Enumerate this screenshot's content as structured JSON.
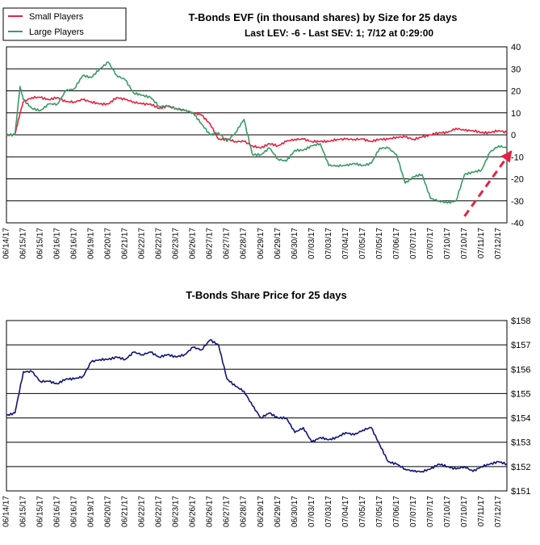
{
  "chart_data": [
    {
      "type": "line",
      "title": "T-Bonds EVF (in thousand shares) by Size for 25 days",
      "subtitle": "Last LEV: -6 - Last SEV: 1; 7/12 at 0:29:00",
      "legend_position": "top-left",
      "grid": true,
      "y_axis_side": "right",
      "ylim": [
        -40,
        40
      ],
      "y_ticks": [
        40,
        30,
        20,
        10,
        0,
        -10,
        -20,
        -30,
        -40
      ],
      "categories": [
        "06/14/17",
        "06/15/17",
        "06/15/17",
        "06/16/17",
        "06/16/17",
        "06/19/17",
        "06/20/17",
        "06/21/17",
        "06/22/17",
        "06/22/17",
        "06/23/17",
        "06/26/17",
        "06/27/17",
        "06/27/17",
        "06/28/17",
        "06/29/17",
        "06/29/17",
        "06/30/17",
        "07/03/17",
        "07/03/17",
        "07/04/17",
        "07/05/17",
        "07/05/17",
        "07/06/17",
        "07/07/17",
        "07/07/17",
        "07/10/17",
        "07/10/17",
        "07/11/17",
        "07/12/17"
      ],
      "colors": {
        "Small Players": "#e8213f",
        "Large Players": "#3a9a67",
        "arrow": "#e8213f"
      },
      "series": [
        {
          "name": "Small Players",
          "x": [
            0,
            0.5,
            0.8,
            1,
            1.5,
            2,
            2.5,
            3,
            3.5,
            4,
            4.5,
            5,
            5.5,
            6,
            6.5,
            7,
            7.5,
            8,
            8.5,
            9,
            9.5,
            10,
            10.5,
            11,
            11.5,
            12,
            12.5,
            13,
            13.5,
            14,
            14.5,
            15,
            15.5,
            16,
            16.5,
            17,
            17.5,
            18,
            18.5,
            19,
            19.5,
            20,
            20.5,
            21,
            21.5,
            22,
            22.5,
            23,
            23.5,
            24,
            24.5,
            25,
            25.5,
            26,
            26.5,
            27,
            27.5,
            28,
            28.5,
            29,
            29.5
          ],
          "values": [
            0,
            0,
            10,
            15,
            17,
            17,
            16,
            17,
            15,
            15,
            16,
            15,
            14,
            14,
            17,
            16,
            15,
            14,
            14,
            12,
            13,
            12,
            11,
            10,
            9,
            5,
            -2,
            -2,
            -3,
            -3,
            -5,
            -6,
            -4,
            -5,
            -3,
            -2,
            -2,
            -3,
            -3,
            -3,
            -2,
            -2,
            -2,
            -2,
            -3,
            -2,
            -2,
            -1,
            -1,
            -2,
            -1,
            0,
            1,
            1,
            3,
            2,
            2,
            1,
            1,
            2,
            1
          ]
        },
        {
          "name": "Large Players",
          "x": [
            0,
            0.5,
            0.8,
            1,
            1.5,
            2,
            2.5,
            3,
            3.5,
            4,
            4.5,
            5,
            5.5,
            6,
            6.5,
            7,
            7.5,
            8,
            8.5,
            9,
            9.5,
            10,
            10.5,
            11,
            11.5,
            12,
            12.5,
            13,
            13.5,
            14,
            14.5,
            15,
            15.5,
            16,
            16.5,
            17,
            17.5,
            18,
            18.5,
            19,
            19.5,
            20,
            20.5,
            21,
            21.5,
            22,
            22.5,
            23,
            23.5,
            24,
            24.5,
            25,
            25.5,
            26,
            26.5,
            27,
            27.5,
            28,
            28.5,
            29,
            29.5
          ],
          "values": [
            0,
            0,
            22,
            16,
            12,
            11,
            14,
            14,
            20,
            21,
            27,
            26,
            30,
            33,
            27,
            25,
            19,
            18,
            17,
            13,
            13,
            12,
            11,
            10,
            5,
            0,
            1,
            -3,
            1,
            7,
            -9,
            -9,
            -6,
            -11,
            -12,
            -7,
            -7,
            -5,
            -4,
            -14,
            -14,
            -14,
            -13,
            -14,
            -13,
            -6,
            -6,
            -9,
            -22,
            -19,
            -18,
            -29,
            -30,
            -31,
            -30,
            -18,
            -17,
            -16,
            -8,
            -5,
            -6
          ]
        }
      ],
      "annotations": [
        {
          "type": "dashed-arrow",
          "from": [
            27,
            -37
          ],
          "to": [
            29.8,
            -7
          ]
        }
      ]
    },
    {
      "type": "line",
      "title": "T-Bonds Share Price for 25 days",
      "grid": true,
      "y_axis_side": "right",
      "ylim": [
        151,
        158
      ],
      "y_ticks": [
        "$158",
        "$157",
        "$156",
        "$155",
        "$154",
        "$153",
        "$152",
        "$151"
      ],
      "categories": [
        "06/14/17",
        "06/15/17",
        "06/15/17",
        "06/16/17",
        "06/16/17",
        "06/19/17",
        "06/20/17",
        "06/21/17",
        "06/22/17",
        "06/22/17",
        "06/23/17",
        "06/26/17",
        "06/26/17",
        "06/27/17",
        "06/28/17",
        "06/29/17",
        "06/29/17",
        "06/30/17",
        "07/03/17",
        "07/03/17",
        "07/04/17",
        "07/05/17",
        "07/05/17",
        "07/06/17",
        "07/07/17",
        "07/07/17",
        "07/10/17",
        "07/10/17",
        "07/11/17",
        "07/12/17"
      ],
      "colors": {
        "price": "#12137a"
      },
      "series": [
        {
          "name": "T-Bonds Share Price",
          "x": [
            0,
            0.5,
            1,
            1.5,
            2,
            2.5,
            3,
            3.5,
            4,
            4.5,
            5,
            5.5,
            6,
            6.5,
            7,
            7.5,
            8,
            8.5,
            9,
            9.5,
            10,
            10.5,
            11,
            11.5,
            12,
            12.5,
            13,
            13.5,
            14,
            14.5,
            15,
            15.5,
            16,
            16.5,
            17,
            17.5,
            18,
            18.5,
            19,
            19.5,
            20,
            20.5,
            21,
            21.5,
            22,
            22.5,
            23,
            23.5,
            24,
            24.5,
            25,
            25.5,
            26,
            26.5,
            27,
            27.5,
            28,
            28.5,
            29,
            29.5
          ],
          "values": [
            154.1,
            154.2,
            155.9,
            155.9,
            155.5,
            155.5,
            155.4,
            155.6,
            155.6,
            155.7,
            156.3,
            156.4,
            156.4,
            156.5,
            156.4,
            156.7,
            156.6,
            156.7,
            156.5,
            156.6,
            156.5,
            156.6,
            156.9,
            156.8,
            157.2,
            157,
            155.6,
            155.3,
            155.1,
            154.5,
            154,
            154.2,
            154,
            154,
            153.4,
            153.6,
            153,
            153.2,
            153.1,
            153.2,
            153.4,
            153.3,
            153.5,
            153.6,
            152.9,
            152.2,
            152.1,
            151.9,
            151.8,
            151.8,
            151.9,
            152.1,
            152,
            151.9,
            152,
            151.8,
            152,
            152.1,
            152.2,
            152.1
          ]
        }
      ]
    }
  ]
}
